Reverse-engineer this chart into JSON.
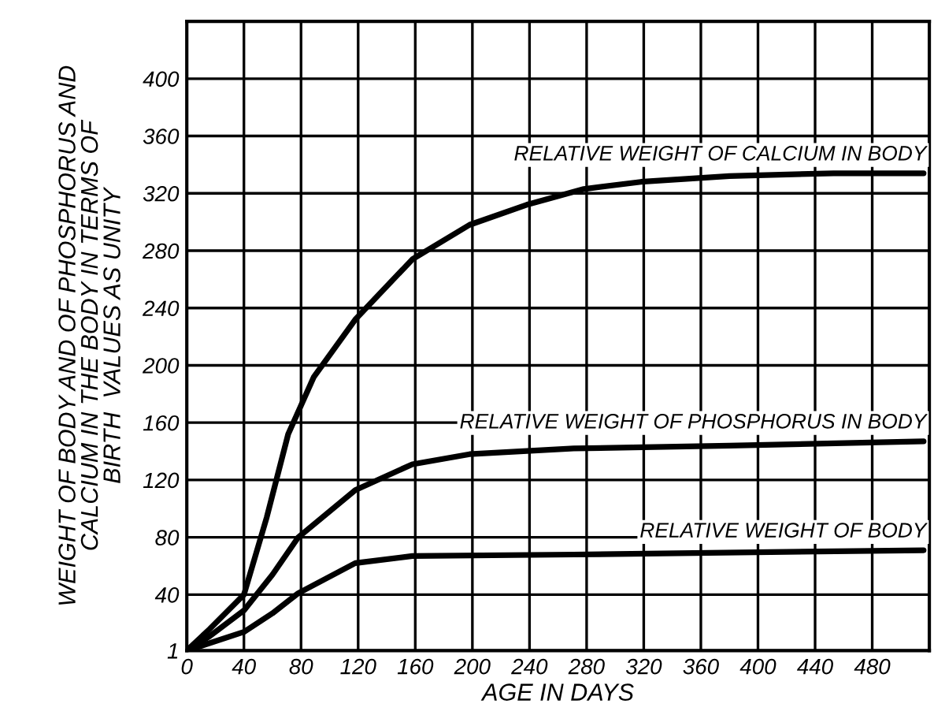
{
  "chart_data": {
    "type": "line",
    "xlabel": "AGE IN DAYS",
    "ylabel": "WEIGHT OF BODY AND OF PHOSPHORUS AND\nCALCIUM IN THE BODY IN TERMS OF\nBIRTH  VALUES AS UNITY",
    "xlim": [
      0,
      520
    ],
    "ylim": [
      1,
      440
    ],
    "xticks": [
      0,
      40,
      80,
      120,
      160,
      200,
      240,
      280,
      320,
      360,
      400,
      440,
      480
    ],
    "yticks": [
      1,
      40,
      80,
      120,
      160,
      200,
      240,
      280,
      320,
      360,
      400
    ],
    "grid": true,
    "marker": "none",
    "line_style": "solid",
    "series": [
      {
        "name": "RELATIVE WEIGHT OF CALCIUM IN BODY",
        "color": "#000000",
        "x": [
          0,
          16,
          27,
          40,
          56,
          71,
          89,
          118,
          158,
          198,
          238,
          278,
          318,
          380,
          453,
          516
        ],
        "values": [
          1,
          16,
          27,
          40,
          94,
          152,
          192,
          232,
          274,
          298,
          312,
          323,
          328,
          332,
          334,
          334
        ]
      },
      {
        "name": "RELATIVE WEIGHT OF PHOSPHORUS IN BODY",
        "color": "#000000",
        "x": [
          0,
          16,
          40,
          60,
          78,
          118,
          158,
          198,
          271,
          380,
          516
        ],
        "values": [
          1,
          11,
          29,
          54,
          80,
          113,
          131,
          138,
          142,
          144,
          147
        ]
      },
      {
        "name": "RELATIVE WEIGHT OF BODY",
        "color": "#000000",
        "x": [
          0,
          40,
          60,
          78,
          118,
          158,
          271,
          516
        ],
        "values": [
          1,
          14,
          27,
          41,
          62,
          67,
          68,
          71
        ]
      }
    ]
  }
}
